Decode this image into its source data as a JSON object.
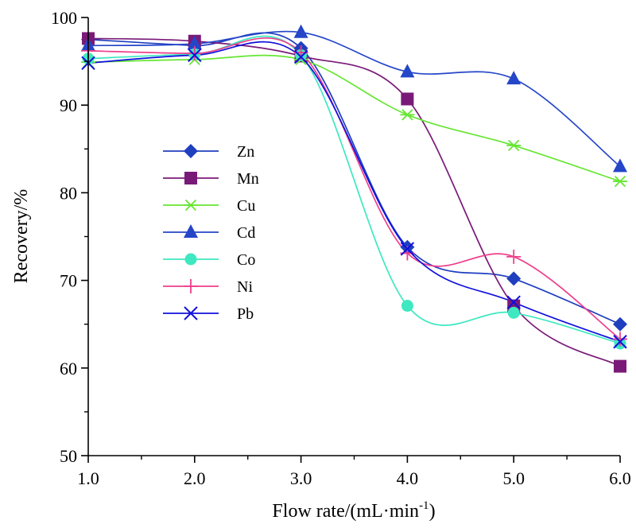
{
  "chart_data": {
    "type": "line",
    "title": "",
    "xlabel": "Flow rate/(mL·min",
    "xlabel_sup": "-1",
    "xlabel_end": ")",
    "ylabel": "Recovery/%",
    "x": [
      1.0,
      2.0,
      3.0,
      4.0,
      5.0,
      6.0
    ],
    "x_tick_labels": [
      "1.0",
      "2.0",
      "3.0",
      "4.0",
      "5.0",
      "6.0"
    ],
    "y_ticks": [
      50,
      60,
      70,
      80,
      90,
      100
    ],
    "y_tick_labels": [
      "50",
      "60",
      "70",
      "80",
      "90",
      "100"
    ],
    "xlim": [
      1.0,
      6.0
    ],
    "ylim": [
      50,
      100
    ],
    "grid": false,
    "legend_position": "left-center",
    "series": [
      {
        "name": "Zn",
        "values": [
          97.5,
          96.8,
          96.5,
          73.8,
          70.2,
          65.0
        ],
        "color": "#1f3fbf",
        "marker": "diamond"
      },
      {
        "name": "Mn",
        "values": [
          97.6,
          97.3,
          95.6,
          90.7,
          67.1,
          60.2
        ],
        "color": "#7a1a78",
        "marker": "square"
      },
      {
        "name": "Cu",
        "values": [
          94.9,
          95.2,
          95.2,
          88.9,
          85.4,
          81.3
        ],
        "color": "#66e633",
        "marker": "asterisk"
      },
      {
        "name": "Cd",
        "values": [
          96.8,
          97.0,
          98.3,
          93.8,
          93.0,
          83.0
        ],
        "color": "#2546c8",
        "marker": "triangle"
      },
      {
        "name": "Co",
        "values": [
          95.3,
          95.8,
          95.7,
          67.1,
          66.3,
          62.8
        ],
        "color": "#3ee8c0",
        "marker": "circle"
      },
      {
        "name": "Ni",
        "values": [
          96.2,
          95.9,
          96.0,
          73.1,
          72.7,
          63.3
        ],
        "color": "#ee3f8c",
        "marker": "plus"
      },
      {
        "name": "Pb",
        "values": [
          94.8,
          95.7,
          95.5,
          73.6,
          67.5,
          63.0
        ],
        "color": "#1010dd",
        "marker": "cross"
      }
    ]
  }
}
